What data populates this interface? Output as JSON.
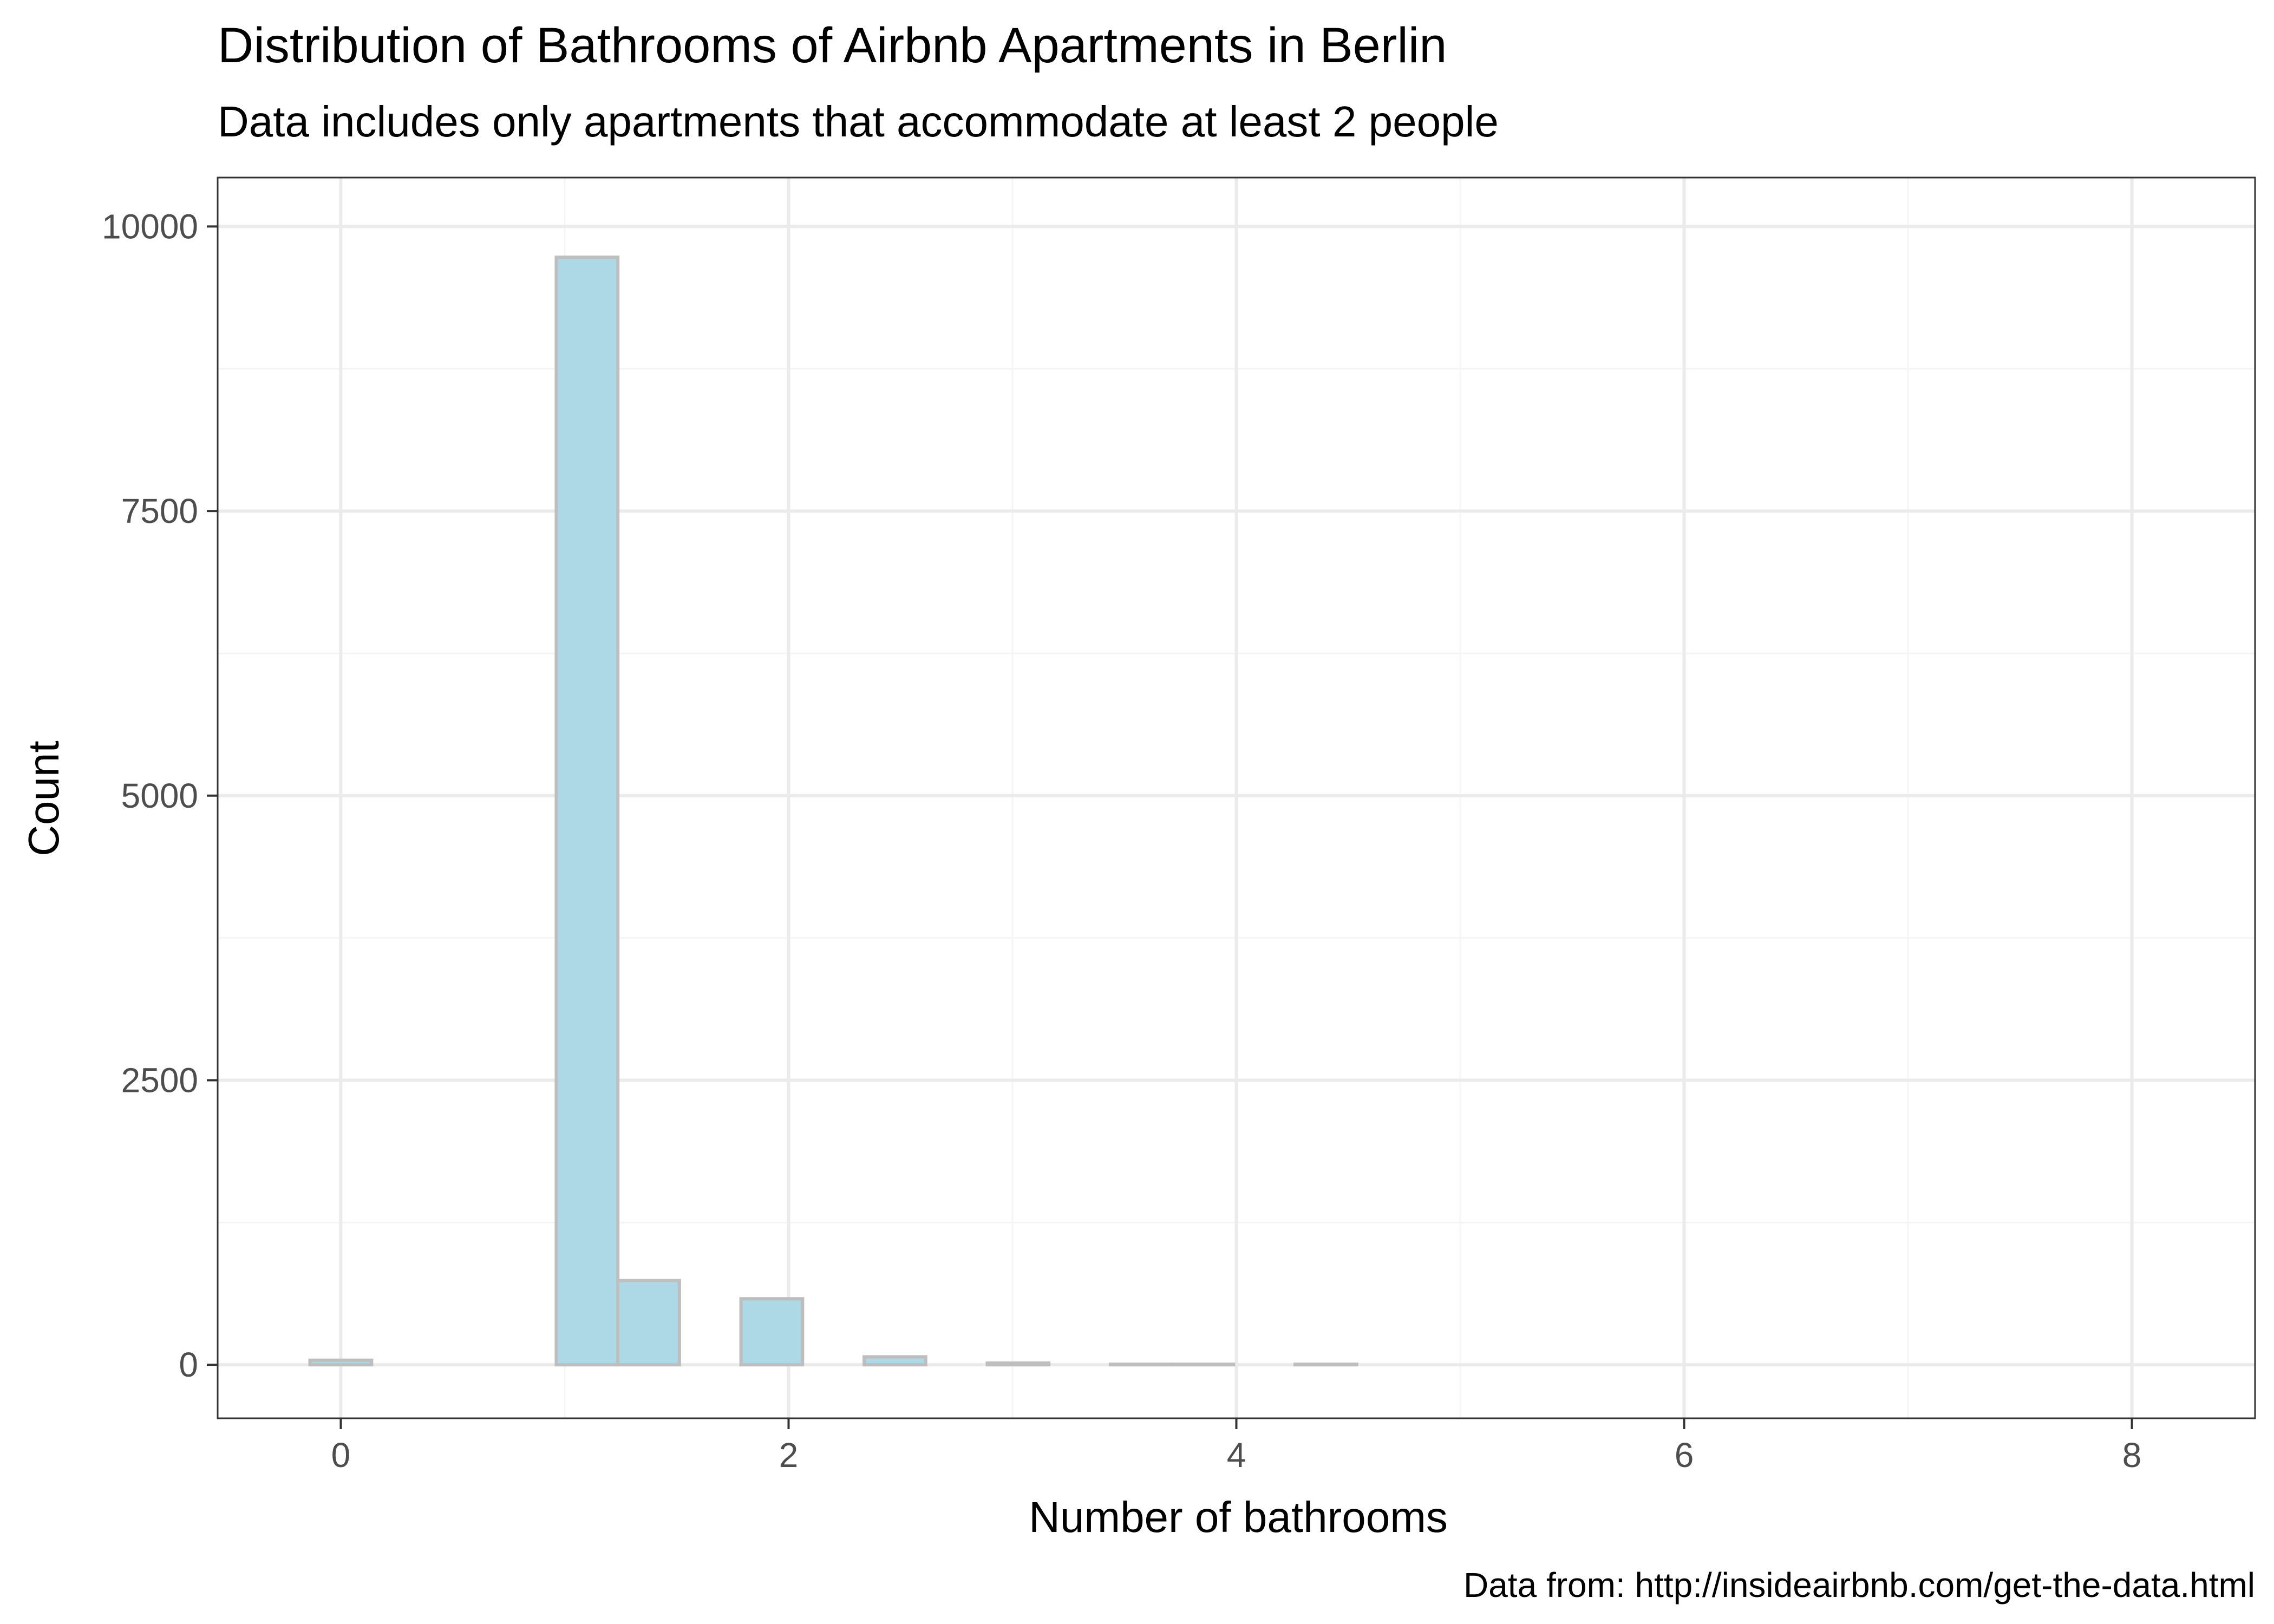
{
  "chart_data": {
    "type": "bar",
    "title": "Distribution of Bathrooms of Airbnb Apartments in Berlin",
    "subtitle": "Data includes only apartments that accommodate at least 2 people",
    "caption": "Data from: http://insideairbnb.com/get-the-data.html",
    "xlabel": "Number of bathrooms",
    "ylabel": "Count",
    "xlim": [
      -0.55,
      8.55
    ],
    "ylim": [
      -470,
      10430
    ],
    "x_ticks": [
      0,
      2,
      4,
      6,
      8
    ],
    "x_tick_labels": [
      "0",
      "2",
      "4",
      "6",
      "8"
    ],
    "y_ticks": [
      0,
      2500,
      5000,
      7500,
      10000
    ],
    "y_tick_labels": [
      "0",
      "2500",
      "5000",
      "7500",
      "10000"
    ],
    "grid": true,
    "bin_width": 0.275,
    "bins": [
      {
        "x": 0.0,
        "count": 40
      },
      {
        "x": 0.275,
        "count": 0
      },
      {
        "x": 0.55,
        "count": 0
      },
      {
        "x": 0.825,
        "count": 0
      },
      {
        "x": 1.1,
        "count": 9730
      },
      {
        "x": 1.375,
        "count": 740
      },
      {
        "x": 1.65,
        "count": 0
      },
      {
        "x": 1.925,
        "count": 580
      },
      {
        "x": 2.2,
        "count": 0
      },
      {
        "x": 2.475,
        "count": 70
      },
      {
        "x": 2.75,
        "count": 0
      },
      {
        "x": 3.025,
        "count": 15
      },
      {
        "x": 3.3,
        "count": 0
      },
      {
        "x": 3.575,
        "count": 5
      },
      {
        "x": 3.85,
        "count": 5
      },
      {
        "x": 4.125,
        "count": 0
      },
      {
        "x": 4.4,
        "count": 5
      },
      {
        "x": 4.675,
        "count": 0
      },
      {
        "x": 4.95,
        "count": 0
      },
      {
        "x": 5.225,
        "count": 0
      },
      {
        "x": 5.5,
        "count": 0
      },
      {
        "x": 5.775,
        "count": 0
      },
      {
        "x": 6.05,
        "count": 0
      },
      {
        "x": 6.325,
        "count": 0
      },
      {
        "x": 6.6,
        "count": 0
      },
      {
        "x": 6.875,
        "count": 0
      },
      {
        "x": 7.15,
        "count": 0
      },
      {
        "x": 7.425,
        "count": 0
      },
      {
        "x": 7.7,
        "count": 0
      },
      {
        "x": 7.975,
        "count": 0
      }
    ],
    "colors": {
      "bar_fill": "#add8e6",
      "bar_stroke": "#bebebe",
      "grid_major": "#ebebeb",
      "grid_minor": "#f5f5f5",
      "panel_border": "#333333",
      "tick_text": "#4d4d4d"
    }
  }
}
